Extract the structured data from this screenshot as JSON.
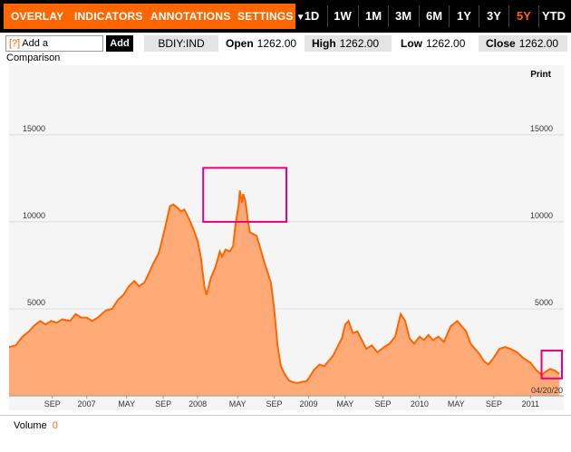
{
  "toolbar": {
    "menus": [
      {
        "label": "OVERLAY"
      },
      {
        "label": "INDICATORS"
      },
      {
        "label": "ANNOTATIONS"
      },
      {
        "label": "SETTINGS"
      }
    ],
    "menu_arrow": "▼",
    "ranges": [
      "1D",
      "1W",
      "1M",
      "3M",
      "6M",
      "1Y",
      "3Y",
      "5Y",
      "YTD"
    ],
    "active_range": "5Y"
  },
  "quote_bar": {
    "compare_help": "[?]",
    "compare_label": "Add a Comparison",
    "add_label": "Add",
    "ticker": "BDIY:IND",
    "open_label": "Open",
    "open_value": "1262.00",
    "high_label": "High",
    "high_value": "1262.00",
    "low_label": "Low",
    "low_value": "1262.00",
    "close_label": "Close",
    "close_value": "1262.00"
  },
  "print_label": "Print",
  "volume": {
    "label": "Volume",
    "value": "0"
  },
  "chart_data": {
    "type": "area",
    "series": [
      {
        "values": [
          [
            2006.3,
            2800
          ],
          [
            2006.36,
            2900
          ],
          [
            2006.42,
            3400
          ],
          [
            2006.48,
            3700
          ],
          [
            2006.52,
            4000
          ],
          [
            2006.58,
            4300
          ],
          [
            2006.63,
            4100
          ],
          [
            2006.68,
            4300
          ],
          [
            2006.73,
            4200
          ],
          [
            2006.78,
            4400
          ],
          [
            2006.85,
            4300
          ],
          [
            2006.9,
            4700
          ],
          [
            2006.95,
            4500
          ],
          [
            2007.0,
            4500
          ],
          [
            2007.05,
            4300
          ],
          [
            2007.1,
            4500
          ],
          [
            2007.17,
            4900
          ],
          [
            2007.23,
            5000
          ],
          [
            2007.28,
            5500
          ],
          [
            2007.33,
            5800
          ],
          [
            2007.38,
            6300
          ],
          [
            2007.43,
            6600
          ],
          [
            2007.47,
            6300
          ],
          [
            2007.52,
            6500
          ],
          [
            2007.55,
            6900
          ],
          [
            2007.6,
            7600
          ],
          [
            2007.65,
            8200
          ],
          [
            2007.7,
            9500
          ],
          [
            2007.75,
            10900
          ],
          [
            2007.78,
            11000
          ],
          [
            2007.82,
            10800
          ],
          [
            2007.85,
            10600
          ],
          [
            2007.88,
            10700
          ],
          [
            2007.92,
            10200
          ],
          [
            2007.96,
            9600
          ],
          [
            2008.0,
            8900
          ],
          [
            2008.03,
            7900
          ],
          [
            2008.06,
            6300
          ],
          [
            2008.08,
            5800
          ],
          [
            2008.12,
            6800
          ],
          [
            2008.16,
            7400
          ],
          [
            2008.2,
            8300
          ],
          [
            2008.22,
            8000
          ],
          [
            2008.25,
            8400
          ],
          [
            2008.29,
            8300
          ],
          [
            2008.32,
            8600
          ],
          [
            2008.34,
            9800
          ],
          [
            2008.37,
            11000
          ],
          [
            2008.38,
            11800
          ],
          [
            2008.4,
            11100
          ],
          [
            2008.41,
            11600
          ],
          [
            2008.43,
            11200
          ],
          [
            2008.45,
            10200
          ],
          [
            2008.47,
            9400
          ],
          [
            2008.5,
            9300
          ],
          [
            2008.53,
            9200
          ],
          [
            2008.56,
            8600
          ],
          [
            2008.6,
            7700
          ],
          [
            2008.63,
            7100
          ],
          [
            2008.66,
            6500
          ],
          [
            2008.69,
            5000
          ],
          [
            2008.72,
            2900
          ],
          [
            2008.75,
            1700
          ],
          [
            2008.78,
            1300
          ],
          [
            2008.82,
            900
          ],
          [
            2008.86,
            780
          ],
          [
            2008.9,
            740
          ],
          [
            2008.94,
            800
          ],
          [
            2008.98,
            840
          ],
          [
            2009.0,
            1000
          ],
          [
            2009.05,
            1500
          ],
          [
            2009.1,
            1800
          ],
          [
            2009.14,
            1700
          ],
          [
            2009.18,
            2000
          ],
          [
            2009.22,
            2300
          ],
          [
            2009.26,
            2800
          ],
          [
            2009.3,
            3300
          ],
          [
            2009.33,
            4100
          ],
          [
            2009.36,
            4300
          ],
          [
            2009.4,
            3600
          ],
          [
            2009.44,
            3700
          ],
          [
            2009.48,
            3200
          ],
          [
            2009.52,
            2700
          ],
          [
            2009.57,
            2900
          ],
          [
            2009.62,
            2500
          ],
          [
            2009.68,
            2800
          ],
          [
            2009.73,
            3000
          ],
          [
            2009.78,
            3400
          ],
          [
            2009.83,
            4700
          ],
          [
            2009.87,
            4300
          ],
          [
            2009.91,
            3300
          ],
          [
            2009.95,
            3000
          ],
          [
            2010.0,
            3400
          ],
          [
            2010.04,
            3200
          ],
          [
            2010.08,
            3500
          ],
          [
            2010.12,
            3200
          ],
          [
            2010.17,
            3400
          ],
          [
            2010.22,
            3100
          ],
          [
            2010.28,
            4000
          ],
          [
            2010.34,
            4300
          ],
          [
            2010.38,
            4000
          ],
          [
            2010.42,
            3700
          ],
          [
            2010.46,
            3000
          ],
          [
            2010.5,
            2700
          ],
          [
            2010.54,
            2400
          ],
          [
            2010.58,
            2000
          ],
          [
            2010.62,
            1800
          ],
          [
            2010.67,
            2200
          ],
          [
            2010.72,
            2700
          ],
          [
            2010.77,
            2800
          ],
          [
            2010.82,
            2700
          ],
          [
            2010.88,
            2500
          ],
          [
            2010.93,
            2200
          ],
          [
            2011.0,
            1900
          ],
          [
            2011.05,
            1500
          ],
          [
            2011.1,
            1200
          ],
          [
            2011.14,
            1400
          ],
          [
            2011.18,
            1550
          ],
          [
            2011.22,
            1450
          ],
          [
            2011.26,
            1262
          ]
        ]
      }
    ],
    "xlim": [
      2006.3,
      2011.3
    ],
    "ylim": [
      0,
      19000
    ],
    "yticks": [
      5000,
      10000,
      15000
    ],
    "xticks": [
      {
        "x": 2006.69,
        "label": "SEP"
      },
      {
        "x": 2007.0,
        "label": "2007"
      },
      {
        "x": 2007.36,
        "label": "MAY"
      },
      {
        "x": 2007.69,
        "label": "SEP"
      },
      {
        "x": 2008.0,
        "label": "2008"
      },
      {
        "x": 2008.36,
        "label": "MAY"
      },
      {
        "x": 2008.69,
        "label": "SEP"
      },
      {
        "x": 2009.0,
        "label": "2009"
      },
      {
        "x": 2009.33,
        "label": "MAY"
      },
      {
        "x": 2009.67,
        "label": "SEP"
      },
      {
        "x": 2010.0,
        "label": "2010"
      },
      {
        "x": 2010.33,
        "label": "MAY"
      },
      {
        "x": 2010.67,
        "label": "SEP"
      },
      {
        "x": 2011.0,
        "label": "2011"
      }
    ],
    "last_date_label": "04/20/20",
    "grid": true,
    "colors": {
      "fill": "#ffaa77",
      "line": "#ff6600",
      "highlight": "#e6007e",
      "grid": "#dddddd",
      "axis_text": "#333333"
    },
    "highlights": [
      {
        "x0": 2008.05,
        "x1": 2008.8,
        "y0": 10000,
        "y1": 13100
      },
      {
        "x0": 2011.1,
        "x1": 2011.4,
        "y0": 1000,
        "y1": 2600
      }
    ]
  }
}
